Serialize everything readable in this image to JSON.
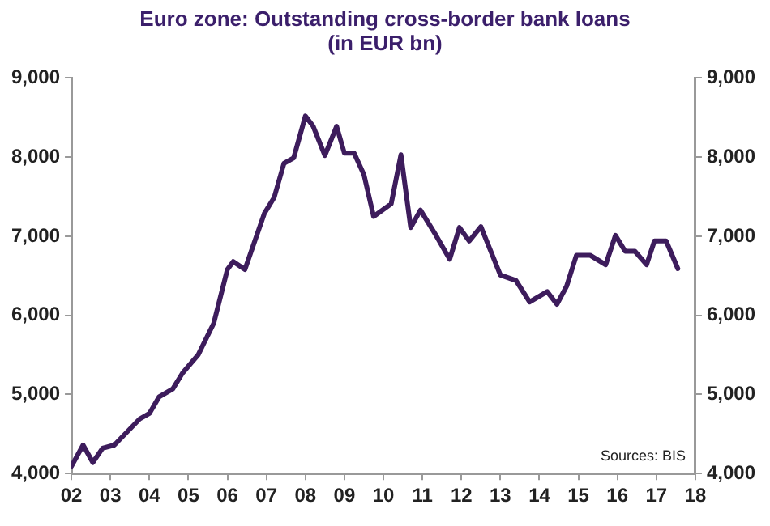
{
  "chart_data": {
    "type": "line",
    "title": "Euro zone: Outstanding cross-border bank loans",
    "subtitle": "(in EUR bn)",
    "x": [
      2002.0,
      2002.3,
      2002.55,
      2002.8,
      2003.1,
      2003.75,
      2004.0,
      2004.25,
      2004.6,
      2004.85,
      2005.25,
      2005.65,
      2006.0,
      2006.15,
      2006.45,
      2006.95,
      2007.2,
      2007.45,
      2007.7,
      2008.0,
      2008.2,
      2008.5,
      2008.8,
      2009.0,
      2009.25,
      2009.5,
      2009.75,
      2010.2,
      2010.45,
      2010.7,
      2010.95,
      2011.35,
      2011.7,
      2011.95,
      2012.2,
      2012.5,
      2013.0,
      2013.4,
      2013.75,
      2014.2,
      2014.45,
      2014.7,
      2014.95,
      2015.3,
      2015.7,
      2015.95,
      2016.2,
      2016.45,
      2016.75,
      2016.95,
      2017.25,
      2017.55
    ],
    "series": [
      {
        "color": "#3d1c5c",
        "axis": "y",
        "values": [
          4090,
          4360,
          4140,
          4320,
          4360,
          4690,
          4760,
          4970,
          5070,
          5270,
          5500,
          5900,
          6580,
          6680,
          6580,
          7290,
          7490,
          7920,
          7990,
          8520,
          8390,
          8020,
          8390,
          8050,
          8050,
          7780,
          7250,
          7410,
          8030,
          7110,
          7330,
          7010,
          6710,
          7110,
          6940,
          7120,
          6510,
          6440,
          6170,
          6300,
          6140,
          6370,
          6760,
          6760,
          6640,
          7010,
          6810,
          6810,
          6640,
          6940,
          6940,
          6590
        ]
      }
    ],
    "xlim": [
      2002,
      2018
    ],
    "xticks": [
      {
        "value": 2002,
        "label": "02"
      },
      {
        "value": 2003,
        "label": "03"
      },
      {
        "value": 2004,
        "label": "04"
      },
      {
        "value": 2005,
        "label": "05"
      },
      {
        "value": 2006,
        "label": "06"
      },
      {
        "value": 2007,
        "label": "07"
      },
      {
        "value": 2008,
        "label": "08"
      },
      {
        "value": 2009,
        "label": "09"
      },
      {
        "value": 2010,
        "label": "10"
      },
      {
        "value": 2011,
        "label": "11"
      },
      {
        "value": 2012,
        "label": "12"
      },
      {
        "value": 2013,
        "label": "13"
      },
      {
        "value": 2014,
        "label": "14"
      },
      {
        "value": 2015,
        "label": "15"
      },
      {
        "value": 2016,
        "label": "16"
      },
      {
        "value": 2017,
        "label": "17"
      },
      {
        "value": 2018,
        "label": "18"
      }
    ],
    "ylim": [
      4000,
      9000
    ],
    "yticks": [
      {
        "value": 4000,
        "label": "4,000"
      },
      {
        "value": 5000,
        "label": "5,000"
      },
      {
        "value": 6000,
        "label": "6,000"
      },
      {
        "value": 7000,
        "label": "7,000"
      },
      {
        "value": 8000,
        "label": "8,000"
      },
      {
        "value": 9000,
        "label": "9,000"
      }
    ],
    "y2lim": [
      4000,
      9000
    ],
    "y2ticks": [
      {
        "value": 4000,
        "label": "4,000"
      },
      {
        "value": 5000,
        "label": "5,000"
      },
      {
        "value": 6000,
        "label": "6,000"
      },
      {
        "value": 7000,
        "label": "7,000"
      },
      {
        "value": 8000,
        "label": "8,000"
      },
      {
        "value": 9000,
        "label": "9,000"
      }
    ],
    "annotations": [
      "Sources: BIS"
    ],
    "grid": false,
    "legend": false,
    "marker": "none",
    "line_style": "solid"
  }
}
